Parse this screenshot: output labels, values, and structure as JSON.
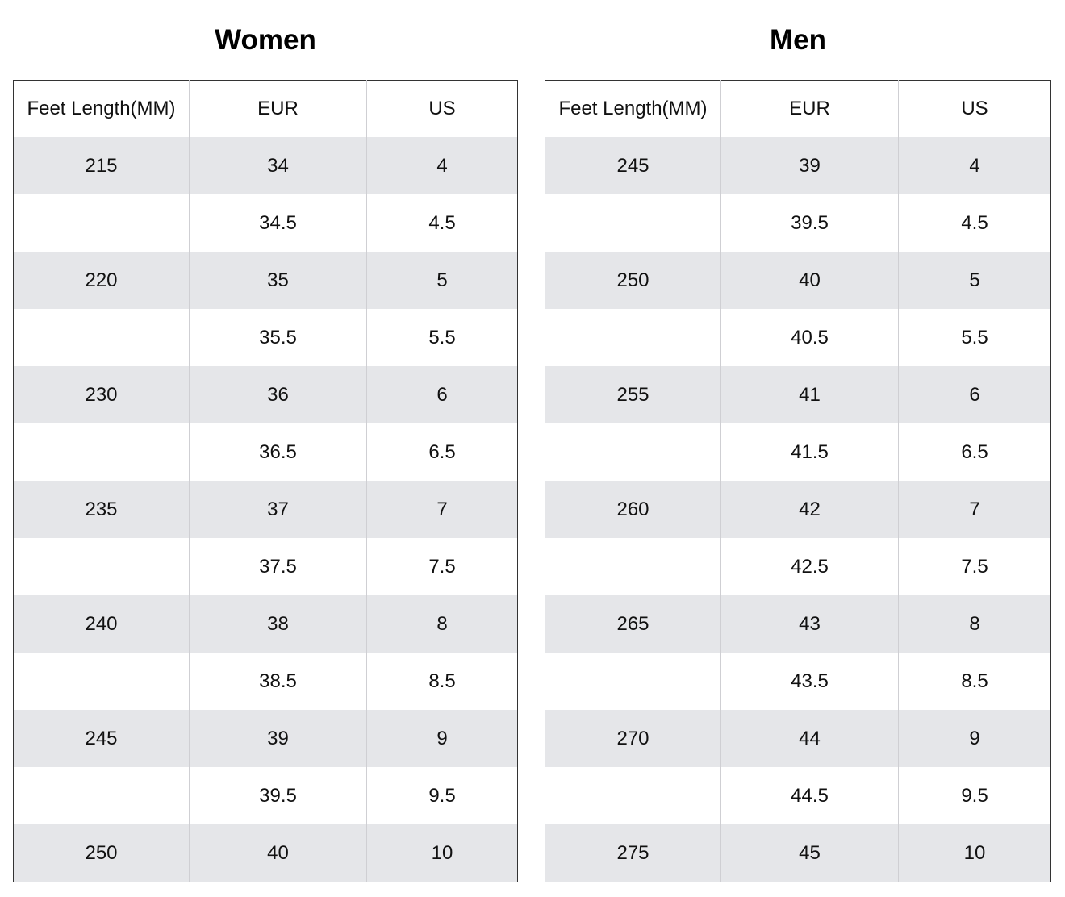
{
  "women": {
    "title": "Women",
    "headers": [
      "Feet Length(MM)",
      "EUR",
      "US"
    ],
    "rows": [
      [
        "215",
        "34",
        "4"
      ],
      [
        "",
        "34.5",
        "4.5"
      ],
      [
        "220",
        "35",
        "5"
      ],
      [
        "",
        "35.5",
        "5.5"
      ],
      [
        "230",
        "36",
        "6"
      ],
      [
        "",
        "36.5",
        "6.5"
      ],
      [
        "235",
        "37",
        "7"
      ],
      [
        "",
        "37.5",
        "7.5"
      ],
      [
        "240",
        "38",
        "8"
      ],
      [
        "",
        "38.5",
        "8.5"
      ],
      [
        "245",
        "39",
        "9"
      ],
      [
        "",
        "39.5",
        "9.5"
      ],
      [
        "250",
        "40",
        "10"
      ]
    ]
  },
  "men": {
    "title": "Men",
    "headers": [
      "Feet Length(MM)",
      "EUR",
      "US"
    ],
    "rows": [
      [
        "245",
        "39",
        "4"
      ],
      [
        "",
        "39.5",
        "4.5"
      ],
      [
        "250",
        "40",
        "5"
      ],
      [
        "",
        "40.5",
        "5.5"
      ],
      [
        "255",
        "41",
        "6"
      ],
      [
        "",
        "41.5",
        "6.5"
      ],
      [
        "260",
        "42",
        "7"
      ],
      [
        "",
        "42.5",
        "7.5"
      ],
      [
        "265",
        "43",
        "8"
      ],
      [
        "",
        "43.5",
        "8.5"
      ],
      [
        "270",
        "44",
        "9"
      ],
      [
        "",
        "44.5",
        "9.5"
      ],
      [
        "275",
        "45",
        "10"
      ]
    ]
  },
  "colors": {
    "stripe": "#e5e6e9",
    "border": "#333333",
    "divider": "#cfcfd3"
  }
}
